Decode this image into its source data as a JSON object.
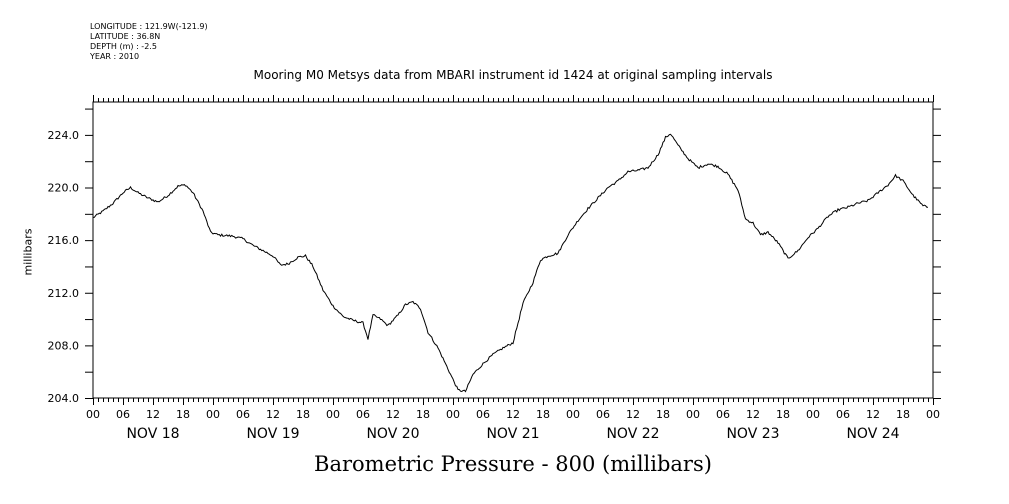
{
  "meta_lines": [
    "LONGITUDE : 121.9W(-121.9)",
    "LATITUDE : 36.8N",
    "DEPTH (m) : -2.5",
    "YEAR : 2010"
  ],
  "chart_data": {
    "type": "line",
    "title": "Mooring M0 Metsys data from MBARI instrument id 1424 at original sampling intervals",
    "xlabel": "Barometric Pressure - 800 (millibars)",
    "ylabel": "millibars",
    "ylim": [
      204,
      226.5
    ],
    "yticks": [
      204.0,
      208.0,
      212.0,
      216.0,
      220.0,
      224.0
    ],
    "ytick_labels": [
      "204.0",
      "208.0",
      "212.0",
      "216.0",
      "220.0",
      "224.0"
    ],
    "xlim": [
      0,
      168
    ],
    "x_unit": "hours from NOV 18 00:00",
    "hour_tick_labels": [
      "00",
      "06",
      "12",
      "18",
      "00",
      "06",
      "12",
      "18",
      "00",
      "06",
      "12",
      "18",
      "00",
      "06",
      "12",
      "18",
      "00",
      "06",
      "12",
      "18",
      "00",
      "06",
      "12",
      "18",
      "00",
      "06",
      "12",
      "18",
      "00"
    ],
    "day_labels": [
      "NOV 18",
      "NOV 19",
      "NOV 20",
      "NOV 21",
      "NOV 22",
      "NOV 23",
      "NOV 24"
    ],
    "grid": false,
    "series": [
      {
        "color": "#000000",
        "points": [
          [
            0,
            217.7
          ],
          [
            2,
            218.2
          ],
          [
            4,
            218.8
          ],
          [
            6,
            219.6
          ],
          [
            7.5,
            220.0
          ],
          [
            9,
            219.6
          ],
          [
            11,
            219.2
          ],
          [
            13,
            218.9
          ],
          [
            15,
            219.4
          ],
          [
            17,
            220.1
          ],
          [
            18.5,
            220.2
          ],
          [
            20,
            219.6
          ],
          [
            22,
            218.2
          ],
          [
            23.5,
            216.6
          ],
          [
            25,
            216.4
          ],
          [
            28,
            216.3
          ],
          [
            30,
            216.1
          ],
          [
            32,
            215.6
          ],
          [
            34,
            215.2
          ],
          [
            36,
            214.8
          ],
          [
            37.5,
            214.1
          ],
          [
            39,
            214.2
          ],
          [
            41,
            214.7
          ],
          [
            42.5,
            214.8
          ],
          [
            44,
            214.0
          ],
          [
            46,
            212.2
          ],
          [
            48,
            211.0
          ],
          [
            50,
            210.2
          ],
          [
            52,
            209.9
          ],
          [
            54,
            209.7
          ],
          [
            55,
            208.5
          ],
          [
            56,
            210.3
          ],
          [
            57.5,
            210.0
          ],
          [
            59,
            209.5
          ],
          [
            61,
            210.3
          ],
          [
            62.5,
            211.1
          ],
          [
            64,
            211.3
          ],
          [
            65.5,
            210.8
          ],
          [
            67,
            209.0
          ],
          [
            69,
            207.8
          ],
          [
            71,
            206.2
          ],
          [
            73,
            204.6
          ],
          [
            74.5,
            204.5
          ],
          [
            76,
            205.8
          ],
          [
            78,
            206.6
          ],
          [
            80,
            207.3
          ],
          [
            82,
            207.8
          ],
          [
            84,
            208.2
          ],
          [
            86,
            211.2
          ],
          [
            88,
            212.8
          ],
          [
            89.5,
            214.5
          ],
          [
            91,
            214.8
          ],
          [
            93,
            215.0
          ],
          [
            95,
            216.4
          ],
          [
            97,
            217.5
          ],
          [
            99,
            218.4
          ],
          [
            101,
            219.2
          ],
          [
            103,
            220.0
          ],
          [
            105,
            220.5
          ],
          [
            107,
            221.2
          ],
          [
            109,
            221.3
          ],
          [
            111,
            221.5
          ],
          [
            113,
            222.5
          ],
          [
            114.5,
            223.8
          ],
          [
            115.5,
            224.1
          ],
          [
            117,
            223.2
          ],
          [
            119,
            222.2
          ],
          [
            121,
            221.5
          ],
          [
            123,
            221.8
          ],
          [
            125,
            221.6
          ],
          [
            127,
            221.0
          ],
          [
            129,
            219.8
          ],
          [
            130.5,
            217.6
          ],
          [
            132,
            217.3
          ],
          [
            133.5,
            216.4
          ],
          [
            135,
            216.6
          ],
          [
            137,
            215.8
          ],
          [
            139,
            214.6
          ],
          [
            141,
            215.2
          ],
          [
            143,
            216.2
          ],
          [
            145,
            216.9
          ],
          [
            147,
            217.8
          ],
          [
            149,
            218.3
          ],
          [
            151,
            218.5
          ],
          [
            153,
            218.8
          ],
          [
            155,
            219.0
          ],
          [
            157,
            219.6
          ],
          [
            159,
            220.2
          ],
          [
            160.5,
            220.9
          ],
          [
            162,
            220.5
          ],
          [
            164,
            219.4
          ],
          [
            166,
            218.6
          ],
          [
            167,
            218.5
          ]
        ]
      }
    ]
  }
}
